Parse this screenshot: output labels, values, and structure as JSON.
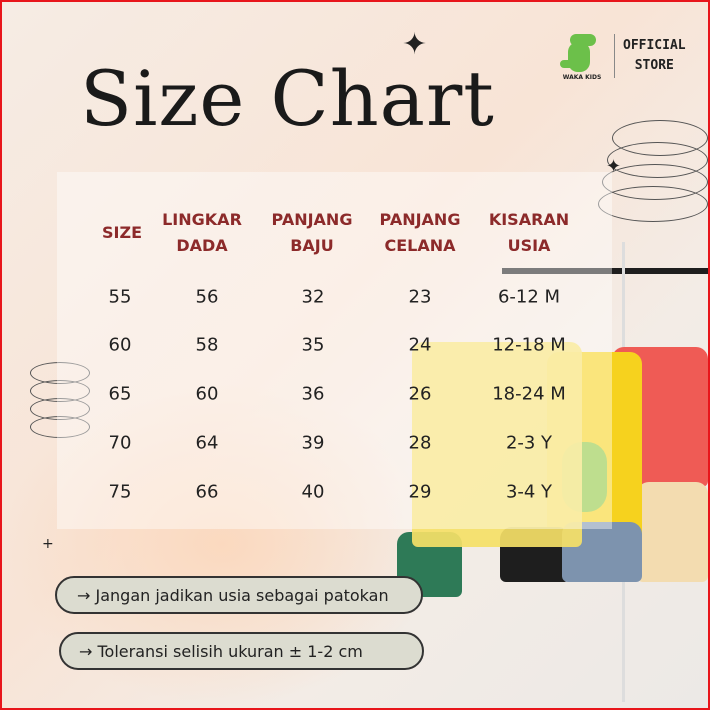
{
  "title": "Size Chart",
  "logo": {
    "brand": "WAKA KIDS",
    "store_line1": "OFFICIAL",
    "store_line2": "STORE"
  },
  "table": {
    "headers": [
      [
        "SIZE",
        ""
      ],
      [
        "LINGKAR",
        "DADA"
      ],
      [
        "PANJANG",
        "BAJU"
      ],
      [
        "PANJANG",
        "CELANA"
      ],
      [
        "KISARAN",
        "USIA"
      ]
    ],
    "rows": [
      [
        "55",
        "56",
        "32",
        "23",
        "6-12 M"
      ],
      [
        "60",
        "58",
        "35",
        "24",
        "12-18 M"
      ],
      [
        "65",
        "60",
        "36",
        "26",
        "18-24 M"
      ],
      [
        "70",
        "64",
        "39",
        "28",
        "2-3 Y"
      ],
      [
        "75",
        "66",
        "40",
        "29",
        "3-4 Y"
      ]
    ]
  },
  "notes": [
    "→  Jangan jadikan usia sebagai patokan",
    "→ Toleransi selisih ukuran ± 1-2 cm"
  ],
  "colors": {
    "header": "#8c2a2a",
    "border": "#e8151b",
    "pill": "#dcdcd0"
  }
}
